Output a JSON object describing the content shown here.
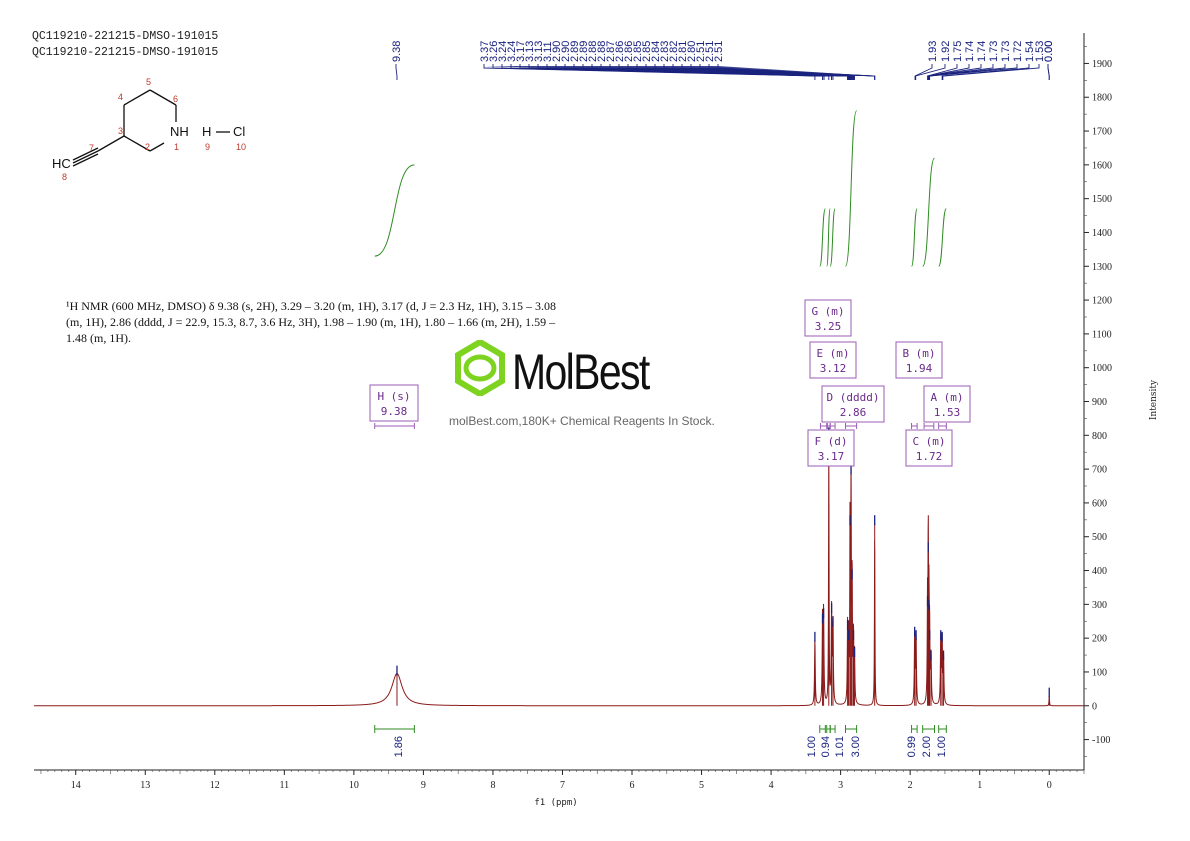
{
  "header": {
    "sample_line1": "QC119210-221215-DMSO-191015",
    "sample_line2": "QC119210-221215-DMSO-191015"
  },
  "nmr_description": {
    "line1": "¹H NMR (600 MHz, DMSO) δ 9.38 (s, 2H), 3.29 – 3.20 (m, 1H), 3.17 (d, J = 2.3 Hz, 1H), 3.15 – 3.08",
    "line2": "(m, 1H), 2.86 (dddd, J = 22.9, 15.3, 8.7, 3.6 Hz, 3H), 1.98 – 1.90 (m, 1H), 1.80 – 1.66 (m, 2H), 1.59 –",
    "line3": "1.48 (m, 1H)."
  },
  "watermark": {
    "brand": "MolBest",
    "tagline": "molBest.com,180K+ Chemical Reagents In Stock."
  },
  "molecule": {
    "atoms": [
      "HC",
      "NH",
      "H",
      "Cl"
    ],
    "numbers": [
      "1",
      "2",
      "3",
      "4",
      "5",
      "6",
      "7",
      "8",
      "9",
      "10"
    ]
  },
  "colors": {
    "spectrum": "#8b1a1a",
    "integral": "#2e8b22",
    "peak_marker": "#1a237e",
    "multiplet_box": "#9b5bb5",
    "atom_number": "#c0392b"
  },
  "chart_data": {
    "type": "line",
    "xlabel": "f1 (ppm)",
    "ylabel": "Intensity",
    "xlim": [
      14.6,
      -0.5
    ],
    "ylim": [
      -190,
      1990
    ],
    "x_reversed": true,
    "x_ticks": [
      "14",
      "13",
      "12",
      "11",
      "10",
      "9",
      "8",
      "7",
      "6",
      "5",
      "4",
      "3",
      "2",
      "1",
      "0"
    ],
    "y_ticks": [
      "-100",
      "0",
      "100",
      "200",
      "300",
      "400",
      "500",
      "600",
      "700",
      "800",
      "900",
      "1000",
      "1100",
      "1200",
      "1300",
      "1400",
      "1500",
      "1600",
      "1700",
      "1800",
      "1900"
    ],
    "peak_labels": [
      "9.38",
      "3.37",
      "3.26",
      "3.24",
      "3.24",
      "3.17",
      "3.13",
      "3.13",
      "3.11",
      "2.90",
      "2.90",
      "2.89",
      "2.89",
      "2.88",
      "2.88",
      "2.87",
      "2.86",
      "2.86",
      "2.85",
      "2.85",
      "2.84",
      "2.83",
      "2.82",
      "2.81",
      "2.80",
      "2.51",
      "2.51",
      "2.51",
      "1.93",
      "1.92",
      "1.75",
      "1.74",
      "1.74",
      "1.73",
      "1.73",
      "1.72",
      "1.54",
      "1.53",
      "0.00",
      "0.00"
    ],
    "peaks": [
      {
        "ppm": 9.38,
        "height": 95,
        "width": 0.09
      },
      {
        "ppm": 3.37,
        "height": 195,
        "width": 0.006
      },
      {
        "ppm": 3.26,
        "height": 250,
        "width": 0.006
      },
      {
        "ppm": 3.245,
        "height": 265,
        "width": 0.006
      },
      {
        "ppm": 3.17,
        "height": 800,
        "width": 0.004
      },
      {
        "ppm": 3.13,
        "height": 280,
        "width": 0.006
      },
      {
        "ppm": 3.11,
        "height": 240,
        "width": 0.006
      },
      {
        "ppm": 2.9,
        "height": 230,
        "width": 0.005
      },
      {
        "ppm": 2.885,
        "height": 200,
        "width": 0.005
      },
      {
        "ppm": 2.865,
        "height": 540,
        "width": 0.004
      },
      {
        "ppm": 2.85,
        "height": 690,
        "width": 0.004
      },
      {
        "ppm": 2.835,
        "height": 380,
        "width": 0.005
      },
      {
        "ppm": 2.815,
        "height": 200,
        "width": 0.005
      },
      {
        "ppm": 2.8,
        "height": 150,
        "width": 0.005
      },
      {
        "ppm": 2.51,
        "height": 540,
        "width": 0.004
      },
      {
        "ppm": 1.935,
        "height": 210,
        "width": 0.006
      },
      {
        "ppm": 1.915,
        "height": 200,
        "width": 0.006
      },
      {
        "ppm": 1.75,
        "height": 300,
        "width": 0.005
      },
      {
        "ppm": 1.74,
        "height": 460,
        "width": 0.004
      },
      {
        "ppm": 1.73,
        "height": 290,
        "width": 0.005
      },
      {
        "ppm": 1.72,
        "height": 200,
        "width": 0.005
      },
      {
        "ppm": 1.7,
        "height": 140,
        "width": 0.006
      },
      {
        "ppm": 1.56,
        "height": 200,
        "width": 0.006
      },
      {
        "ppm": 1.54,
        "height": 195,
        "width": 0.006
      },
      {
        "ppm": 1.52,
        "height": 140,
        "width": 0.006
      },
      {
        "ppm": 0.0,
        "height": 30,
        "width": 0.004
      }
    ],
    "integrals": [
      {
        "value": "1.86",
        "start": 9.7,
        "end": 9.13,
        "from": 1330,
        "to": 1600
      },
      {
        "value": "1.00",
        "start": 3.3,
        "end": 3.22,
        "from": 1300,
        "to": 1470
      },
      {
        "value": "0.94",
        "start": 3.2,
        "end": 3.15,
        "from": 1300,
        "to": 1470
      },
      {
        "value": "1.01",
        "start": 3.15,
        "end": 3.08,
        "from": 1300,
        "to": 1470
      },
      {
        "value": "3.00",
        "start": 2.93,
        "end": 2.77,
        "from": 1300,
        "to": 1760
      },
      {
        "value": "0.99",
        "start": 1.98,
        "end": 1.9,
        "from": 1300,
        "to": 1470
      },
      {
        "value": "2.00",
        "start": 1.82,
        "end": 1.65,
        "from": 1300,
        "to": 1620
      },
      {
        "value": "1.00",
        "start": 1.59,
        "end": 1.48,
        "from": 1300,
        "to": 1470
      }
    ],
    "multiplets": [
      {
        "letter_type": "H (s)",
        "shift": "9.38",
        "ppm_start": 9.7,
        "ppm_end": 9.13
      },
      {
        "letter_type": "G (m)",
        "shift": "3.25",
        "ppm_start": 3.29,
        "ppm_end": 3.2
      },
      {
        "letter_type": "E (m)",
        "shift": "3.12",
        "ppm_start": 3.15,
        "ppm_end": 3.08
      },
      {
        "letter_type": "D (dddd)",
        "shift": "2.86",
        "ppm_start": 2.93,
        "ppm_end": 2.77
      },
      {
        "letter_type": "F (d)",
        "shift": "3.17",
        "ppm_start": 3.19,
        "ppm_end": 3.15
      },
      {
        "letter_type": "B (m)",
        "shift": "1.94",
        "ppm_start": 1.98,
        "ppm_end": 1.9
      },
      {
        "letter_type": "A (m)",
        "shift": "1.53",
        "ppm_start": 1.59,
        "ppm_end": 1.48
      },
      {
        "letter_type": "C (m)",
        "shift": "1.72",
        "ppm_start": 1.8,
        "ppm_end": 1.66
      }
    ]
  }
}
